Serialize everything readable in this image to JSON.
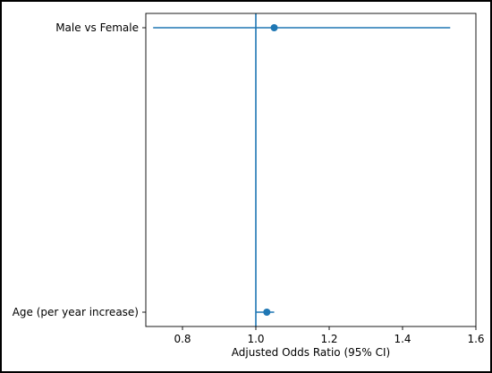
{
  "chart_data": {
    "type": "scatter",
    "subtype": "forest-plot",
    "title": "",
    "xlabel": "Adjusted Odds Ratio (95% CI)",
    "ylabel": "",
    "xlim": [
      0.7,
      1.6
    ],
    "xticks": [
      0.8,
      1.0,
      1.2,
      1.4,
      1.6
    ],
    "xtick_labels": [
      "0.8",
      "1.0",
      "1.2",
      "1.4",
      "1.6"
    ],
    "reference_line": 1.0,
    "grid": false,
    "legend": "none",
    "color": "#1f77b4",
    "rows": [
      {
        "label": "Age (per year increase)",
        "estimate": 1.03,
        "ci_low": 1.0,
        "ci_high": 1.05
      },
      {
        "label": "Male vs Female",
        "estimate": 1.05,
        "ci_low": 0.72,
        "ci_high": 1.53
      }
    ]
  }
}
